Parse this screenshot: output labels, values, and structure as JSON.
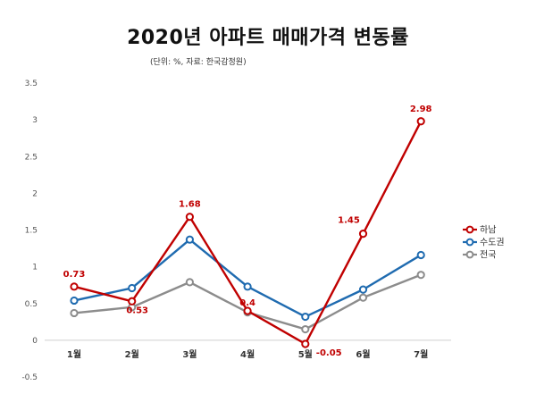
{
  "chart_data": {
    "type": "line",
    "title": "2020년 아파트 매매가격 변동률",
    "subtitle": "(단위: %, 자료: 한국감정원)",
    "categories": [
      "1월",
      "2월",
      "3월",
      "4월",
      "5월",
      "6월",
      "7월"
    ],
    "ylim": [
      -0.5,
      3.5
    ],
    "yticks": [
      "3.5",
      "3",
      "2.5",
      "2",
      "1.5",
      "1",
      "0.5",
      "0",
      "-0.5"
    ],
    "grid": false,
    "legend_position": "right",
    "series": [
      {
        "name": "하남",
        "color": "#c00000",
        "values": [
          0.73,
          0.53,
          1.68,
          0.4,
          -0.05,
          1.45,
          2.98
        ],
        "labels": [
          "0.73",
          "0.53",
          "1.68",
          "0.4",
          "-0.05",
          "1.45",
          "2.98"
        ]
      },
      {
        "name": "수도권",
        "color": "#1f6bb0",
        "values": [
          0.54,
          0.71,
          1.37,
          0.73,
          0.32,
          0.69,
          1.16
        ]
      },
      {
        "name": "전국",
        "color": "#8c8c8c",
        "values": [
          0.37,
          0.45,
          0.79,
          0.38,
          0.15,
          0.58,
          0.89
        ]
      }
    ]
  }
}
